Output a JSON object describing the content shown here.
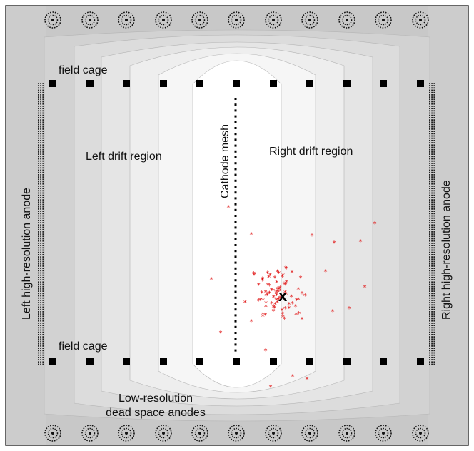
{
  "labels": {
    "field_cage_top": "field cage",
    "field_cage_bottom": "field cage",
    "left_drift": "Left drift region",
    "right_drift": "Right drift region",
    "cathode": "Cathode mesh",
    "left_anode": "Left high-resolution anode",
    "right_anode": "Right high-resolution anode",
    "low_res_line1": "Low-resolution",
    "low_res_line2": "dead space anodes",
    "event_marker": "x"
  },
  "colors": {
    "background_outer": "#c8c8c8",
    "field_bands": [
      "#d2d2d2",
      "#dcdcdc",
      "#e5e5e5",
      "#eeeeee",
      "#f6f6f6",
      "#ffffff"
    ],
    "electrode": "#000000",
    "hits": "#e01010"
  },
  "counts": {
    "field_cage_electrodes_per_row": 11,
    "dead_space_anodes_per_row": 11,
    "scatter_hits": 95
  }
}
